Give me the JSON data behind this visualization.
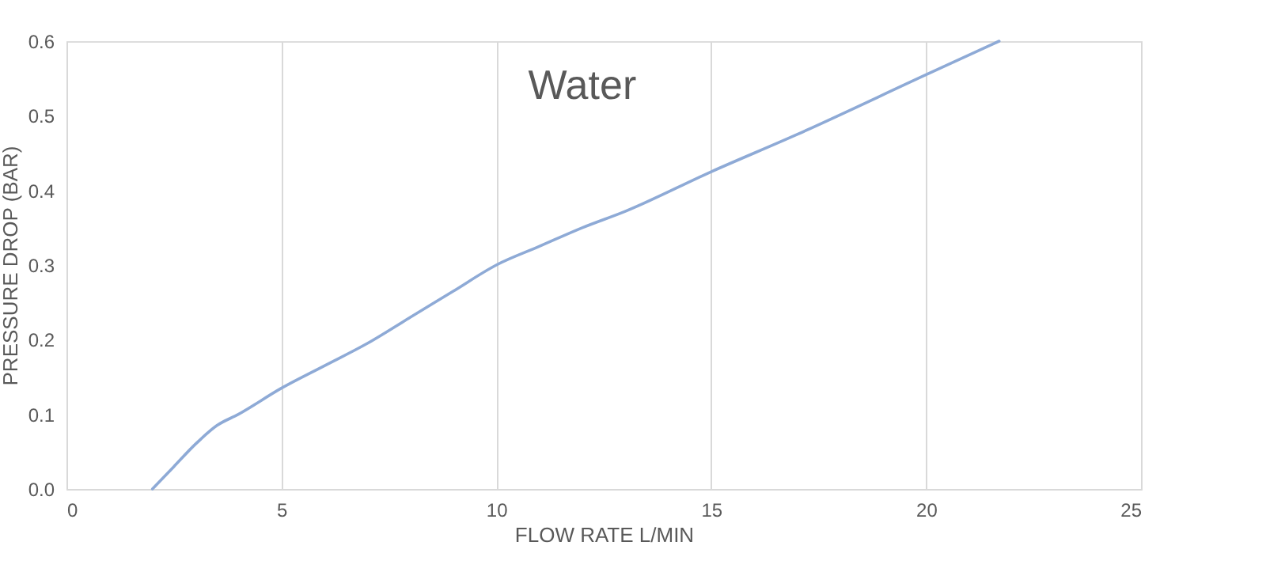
{
  "chart_data": {
    "type": "line",
    "title": "Water",
    "xlabel": "FLOW RATE L/MIN",
    "ylabel": "PRESSURE DROP (BAR)",
    "xlim": [
      0,
      25
    ],
    "xticks": [
      0,
      5,
      10,
      15,
      20,
      25
    ],
    "ylim": [
      0,
      0.6
    ],
    "yticks": [
      {
        "value": 0,
        "label": "0.0"
      },
      0.1,
      0.2,
      0.3,
      0.4,
      0.5,
      0.6
    ],
    "grid": "x",
    "legend": false,
    "marker": "none",
    "line_style": "solid",
    "series": [
      {
        "color": "#8eaad6",
        "x": [
          2.0,
          2.5,
          3.0,
          3.5,
          4.0,
          5.0,
          6.0,
          7.0,
          8.0,
          9.0,
          10.0,
          11.0,
          12.0,
          13.0,
          15.0,
          17.0,
          20.0,
          21.7
        ],
        "values": [
          0.0,
          0.03,
          0.06,
          0.085,
          0.1,
          0.135,
          0.165,
          0.195,
          0.23,
          0.265,
          0.3,
          0.325,
          0.35,
          0.372,
          0.425,
          0.475,
          0.555,
          0.6
        ]
      }
    ]
  }
}
